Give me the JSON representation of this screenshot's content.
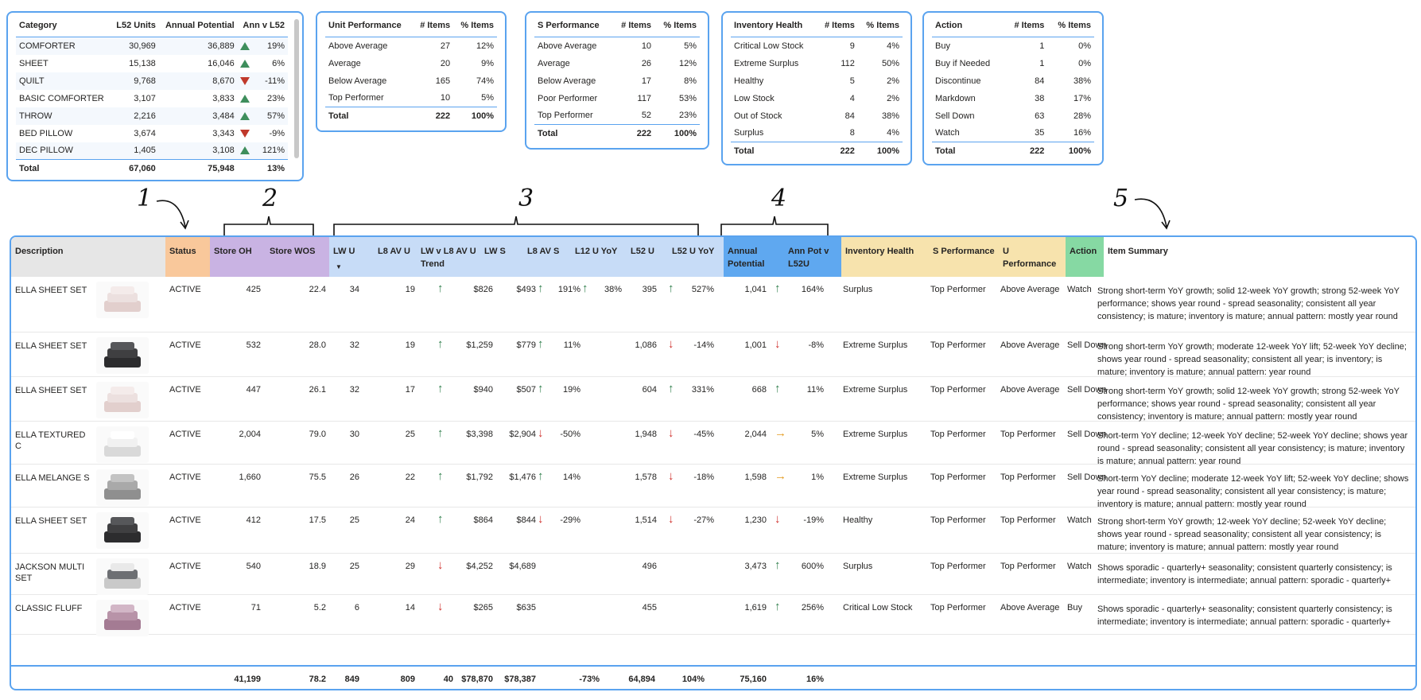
{
  "category_card": {
    "headers": [
      "Category",
      "L52 Units",
      "Annual Potential",
      "Ann v L52"
    ],
    "rows": [
      {
        "name": "COMFORTER",
        "units": "30,969",
        "potential": "36,889",
        "dir": "up",
        "pct": "19%"
      },
      {
        "name": "SHEET",
        "units": "15,138",
        "potential": "16,046",
        "dir": "up",
        "pct": "6%"
      },
      {
        "name": "QUILT",
        "units": "9,768",
        "potential": "8,670",
        "dir": "down",
        "pct": "-11%"
      },
      {
        "name": "BASIC COMFORTER",
        "units": "3,107",
        "potential": "3,833",
        "dir": "up",
        "pct": "23%"
      },
      {
        "name": "THROW",
        "units": "2,216",
        "potential": "3,484",
        "dir": "up",
        "pct": "57%"
      },
      {
        "name": "BED PILLOW",
        "units": "3,674",
        "potential": "3,343",
        "dir": "down",
        "pct": "-9%"
      },
      {
        "name": "DEC PILLOW",
        "units": "1,405",
        "potential": "3,108",
        "dir": "up",
        "pct": "121%"
      }
    ],
    "total": {
      "name": "Total",
      "units": "67,060",
      "potential": "75,948",
      "pct": "13%"
    }
  },
  "unit_perf_card": {
    "headers": [
      "Unit Performance",
      "# Items",
      "% Items"
    ],
    "rows": [
      [
        "Above Average",
        "27",
        "12%"
      ],
      [
        "Average",
        "20",
        "9%"
      ],
      [
        "Below Average",
        "165",
        "74%"
      ],
      [
        "Top Performer",
        "10",
        "5%"
      ]
    ],
    "total": [
      "Total",
      "222",
      "100%"
    ]
  },
  "s_perf_card": {
    "headers": [
      "S Performance",
      "# Items",
      "% Items"
    ],
    "rows": [
      [
        "Above Average",
        "10",
        "5%"
      ],
      [
        "Average",
        "26",
        "12%"
      ],
      [
        "Below Average",
        "17",
        "8%"
      ],
      [
        "Poor Performer",
        "117",
        "53%"
      ],
      [
        "Top Performer",
        "52",
        "23%"
      ]
    ],
    "total": [
      "Total",
      "222",
      "100%"
    ]
  },
  "inv_card": {
    "headers": [
      "Inventory Health",
      "# Items",
      "% Items"
    ],
    "rows": [
      [
        "Critical Low Stock",
        "9",
        "4%"
      ],
      [
        "Extreme Surplus",
        "112",
        "50%"
      ],
      [
        "Healthy",
        "5",
        "2%"
      ],
      [
        "Low Stock",
        "4",
        "2%"
      ],
      [
        "Out of Stock",
        "84",
        "38%"
      ],
      [
        "Surplus",
        "8",
        "4%"
      ]
    ],
    "total": [
      "Total",
      "222",
      "100%"
    ]
  },
  "action_card": {
    "headers": [
      "Action",
      "# Items",
      "% Items"
    ],
    "rows": [
      [
        "Buy",
        "1",
        "0%"
      ],
      [
        "Buy if Needed",
        "1",
        "0%"
      ],
      [
        "Discontinue",
        "84",
        "38%"
      ],
      [
        "Markdown",
        "38",
        "17%"
      ],
      [
        "Sell Down",
        "63",
        "28%"
      ],
      [
        "Watch",
        "35",
        "16%"
      ]
    ],
    "total": [
      "Total",
      "222",
      "100%"
    ]
  },
  "annotations": [
    "1",
    "2",
    "3",
    "4",
    "5"
  ],
  "grid": {
    "headers": {
      "description": "Description",
      "status": "Status",
      "store_oh": "Store OH",
      "store_wos": "Store WOS",
      "lw_u": "LW U",
      "l8_av_u": "L8 AV U",
      "lw_v_l8": "LW v L8 AV U Trend",
      "lw_s": "LW S",
      "l8_av_s": "L8 AV S",
      "l12_u_yoy": "L12 U YoY",
      "l52_u": "L52 U",
      "l52_u_yoy": "L52 U YoY",
      "annual_potential": "Annual Potential",
      "ann_pot_v": "Ann Pot v L52U",
      "inv_health": "Inventory Health",
      "s_perf": "S Performance",
      "u_perf": "U Performance",
      "action": "Action",
      "summary": "Item Summary"
    },
    "header_colors": {
      "description": "#e6e6e6",
      "status": "#f9c89b",
      "store": "#c9b3e3",
      "lw": "#c7dcf7",
      "annual": "#5fa8f0",
      "perf": "#f7e3ad",
      "action": "#86d9a3",
      "summary": "#ffffff"
    },
    "rows": [
      {
        "desc": "ELLA SHEET SET",
        "thumb": "pink",
        "status": "ACTIVE",
        "oh": "425",
        "wos": "22.4",
        "lwu": "34",
        "l8u": "19",
        "trend": "up",
        "lws": "$826",
        "l8s": "$493",
        "l12dir": "up",
        "l12": "191%",
        "l12b_dir": "up",
        "l12b": "38%",
        "l52u": "395",
        "l52dir": "up",
        "l52yoy": "527%",
        "ann": "1,041",
        "anndir": "up",
        "annpct": "164%",
        "inv": "Surplus",
        "sperf": "Top Performer",
        "uperf": "Above Average",
        "action": "Watch",
        "summary": "Strong short-term YoY growth; solid 12-week YoY growth; strong 52-week YoY performance; shows year round - spread seasonality; consistent all year consistency; is mature; inventory is mature; annual pattern: mostly year round"
      },
      {
        "desc": "ELLA SHEET SET",
        "thumb": "dark",
        "status": "ACTIVE",
        "oh": "532",
        "wos": "28.0",
        "lwu": "32",
        "l8u": "19",
        "trend": "up",
        "lws": "$1,259",
        "l8s": "$779",
        "l12dir": "up",
        "l12": "11%",
        "l12b_dir": "",
        "l12b": "",
        "l52u": "1,086",
        "l52dir": "down",
        "l52yoy": "-14%",
        "ann": "1,001",
        "anndir": "down",
        "annpct": "-8%",
        "inv": "Extreme Surplus",
        "sperf": "Top Performer",
        "uperf": "Above Average",
        "action": "Sell Down",
        "summary": "Strong short-term YoY growth; moderate 12-week YoY lift; 52-week YoY decline; shows year round - spread seasonality; consistent all year; is inventory; is mature; inventory is mature; annual pattern: year round"
      },
      {
        "desc": "ELLA SHEET SET",
        "thumb": "pink",
        "status": "ACTIVE",
        "oh": "447",
        "wos": "26.1",
        "lwu": "32",
        "l8u": "17",
        "trend": "up",
        "lws": "$940",
        "l8s": "$507",
        "l12dir": "up",
        "l12": "19%",
        "l12b_dir": "",
        "l12b": "",
        "l52u": "604",
        "l52dir": "up",
        "l52yoy": "331%",
        "ann": "668",
        "anndir": "up",
        "annpct": "11%",
        "inv": "Extreme Surplus",
        "sperf": "Top Performer",
        "uperf": "Above Average",
        "action": "Sell Down",
        "summary": "Strong short-term YoY growth; solid 12-week YoY growth; strong 52-week YoY performance; shows year round - spread seasonality; consistent all year consistency; inventory is mature; annual pattern: mostly year round"
      },
      {
        "desc": "ELLA TEXTURED C",
        "thumb": "white",
        "status": "ACTIVE",
        "oh": "2,004",
        "wos": "79.0",
        "lwu": "30",
        "l8u": "25",
        "trend": "up",
        "lws": "$3,398",
        "l8s": "$2,904",
        "l12dir": "down",
        "l12": "-50%",
        "l12b_dir": "",
        "l12b": "",
        "l52u": "1,948",
        "l52dir": "down",
        "l52yoy": "-45%",
        "ann": "2,044",
        "anndir": "right",
        "annpct": "5%",
        "inv": "Extreme Surplus",
        "sperf": "Top Performer",
        "uperf": "Top Performer",
        "action": "Sell Down",
        "summary": "Short-term YoY decline; 12-week YoY decline; 52-week YoY decline; shows year round - spread seasonality; consistent all year consistency; is mature; inventory is mature; annual pattern: year round"
      },
      {
        "desc": "ELLA MELANGE S",
        "thumb": "grey",
        "status": "ACTIVE",
        "oh": "1,660",
        "wos": "75.5",
        "lwu": "26",
        "l8u": "22",
        "trend": "up",
        "lws": "$1,792",
        "l8s": "$1,476",
        "l12dir": "up",
        "l12": "14%",
        "l12b_dir": "",
        "l12b": "",
        "l52u": "1,578",
        "l52dir": "down",
        "l52yoy": "-18%",
        "ann": "1,598",
        "anndir": "right",
        "annpct": "1%",
        "inv": "Extreme Surplus",
        "sperf": "Top Performer",
        "uperf": "Top Performer",
        "action": "Sell Down",
        "summary": "Short-term YoY decline; moderate 12-week YoY lift; 52-week YoY decline; shows year round - spread seasonality; consistent all year consistency; is mature; inventory is mature; annual pattern: mostly year round"
      },
      {
        "desc": "ELLA SHEET SET",
        "thumb": "dark",
        "status": "ACTIVE",
        "oh": "412",
        "wos": "17.5",
        "lwu": "25",
        "l8u": "24",
        "trend": "up",
        "lws": "$864",
        "l8s": "$844",
        "l12dir": "down",
        "l12": "-29%",
        "l12b_dir": "",
        "l12b": "",
        "l52u": "1,514",
        "l52dir": "down",
        "l52yoy": "-27%",
        "ann": "1,230",
        "anndir": "down",
        "annpct": "-19%",
        "inv": "Healthy",
        "sperf": "Top Performer",
        "uperf": "Top Performer",
        "action": "Watch",
        "summary": "Strong short-term YoY growth; 12-week YoY decline; 52-week YoY decline; shows year round - spread seasonality; consistent all year consistency; is mature; inventory is mature; annual pattern: mostly year round"
      },
      {
        "desc": "JACKSON MULTI SET",
        "thumb": "bed",
        "status": "ACTIVE",
        "oh": "540",
        "wos": "18.9",
        "lwu": "25",
        "l8u": "29",
        "trend": "down",
        "lws": "$4,252",
        "l8s": "$4,689",
        "l12dir": "",
        "l12": "",
        "l12b_dir": "",
        "l12b": "",
        "l52u": "496",
        "l52dir": "",
        "l52yoy": "",
        "ann": "3,473",
        "anndir": "up",
        "annpct": "600%",
        "inv": "Surplus",
        "sperf": "Top Performer",
        "uperf": "Top Performer",
        "action": "Watch",
        "summary": "Shows sporadic - quarterly+ seasonality; consistent quarterly consistency; is intermediate; inventory is intermediate; annual pattern: sporadic - quarterly+"
      },
      {
        "desc": "CLASSIC FLUFF",
        "thumb": "purple",
        "status": "ACTIVE",
        "oh": "71",
        "wos": "5.2",
        "lwu": "6",
        "l8u": "14",
        "trend": "down",
        "lws": "$265",
        "l8s": "$635",
        "l12dir": "",
        "l12": "",
        "l12b_dir": "",
        "l12b": "",
        "l52u": "455",
        "l52dir": "",
        "l52yoy": "",
        "ann": "1,619",
        "anndir": "up",
        "annpct": "256%",
        "inv": "Critical Low Stock",
        "sperf": "Top Performer",
        "uperf": "Above Average",
        "action": "Buy",
        "summary": "Shows sporadic - quarterly+ seasonality; consistent quarterly consistency; is intermediate; inventory is intermediate; annual pattern: sporadic - quarterly+"
      }
    ],
    "totals": {
      "oh": "41,199",
      "wos": "78.2",
      "lwu": "849",
      "l8u": "809",
      "trend": "40",
      "lws": "$78,870",
      "l8s": "$78,387",
      "l12": "-73%",
      "l52u": "64,894",
      "l52yoy": "104%",
      "ann": "75,160",
      "annpct": "16%"
    }
  }
}
